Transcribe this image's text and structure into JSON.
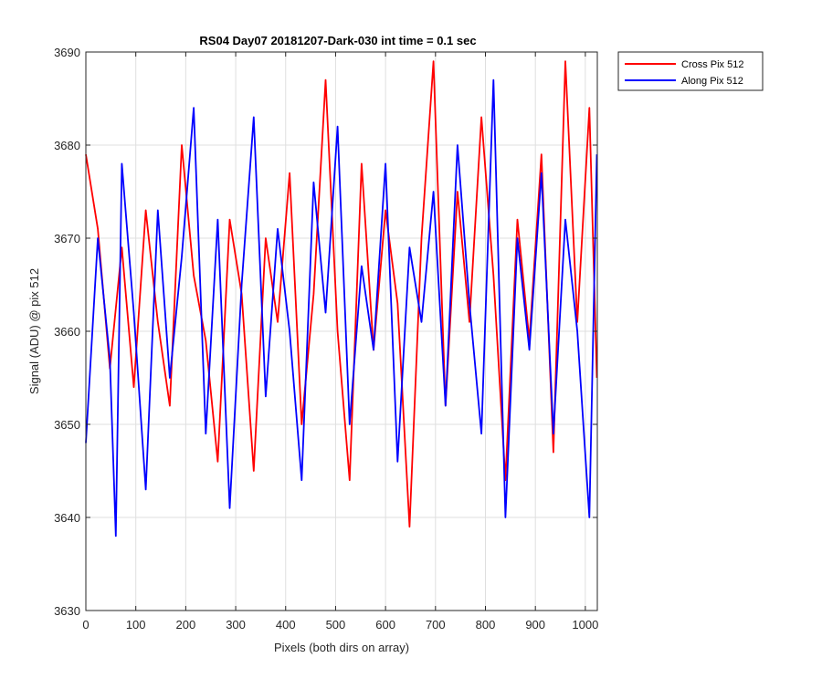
{
  "chart_data": {
    "type": "line",
    "title": "RS04 Day07 20181207-Dark-030 int time = 0.1 sec",
    "xlabel": "Pixels (both dirs on array)",
    "ylabel": "Signal (ADU) @ pix 512",
    "xlim": [
      0,
      1024
    ],
    "ylim": [
      3630,
      3690
    ],
    "xticks": [
      0,
      100,
      200,
      300,
      400,
      500,
      600,
      700,
      800,
      900,
      1000
    ],
    "yticks": [
      3630,
      3640,
      3650,
      3660,
      3670,
      3680,
      3690
    ],
    "xtick_labels": [
      "0",
      "100",
      "200",
      "300",
      "400",
      "500",
      "600",
      "700",
      "800",
      "900",
      "1000"
    ],
    "ytick_labels": [
      "3630",
      "3640",
      "3650",
      "3660",
      "3670",
      "3680",
      "3690"
    ],
    "grid": true,
    "legend_position": "outside-top-right",
    "series": [
      {
        "name": "Cross Pix 512",
        "color": "#ff0000",
        "x": [
          0,
          24,
          48,
          72,
          96,
          120,
          144,
          168,
          192,
          216,
          240,
          264,
          288,
          312,
          336,
          360,
          384,
          408,
          432,
          456,
          480,
          504,
          528,
          552,
          576,
          600,
          624,
          648,
          672,
          696,
          720,
          744,
          768,
          792,
          816,
          840,
          864,
          888,
          912,
          936,
          960,
          984,
          1008,
          1023
        ],
        "y": [
          3679,
          3671,
          3656,
          3669,
          3654,
          3673,
          3661,
          3652,
          3680,
          3666,
          3659,
          3646,
          3672,
          3664,
          3645,
          3670,
          3661,
          3677,
          3650,
          3664,
          3687,
          3660,
          3644,
          3678,
          3658,
          3673,
          3663,
          3639,
          3670,
          3689,
          3652,
          3675,
          3661,
          3683,
          3666,
          3644,
          3672,
          3659,
          3679,
          3647,
          3689,
          3661,
          3684,
          3655
        ]
      },
      {
        "name": "Along Pix 512",
        "color": "#0000ff",
        "x": [
          0,
          24,
          48,
          60,
          72,
          96,
          120,
          144,
          168,
          192,
          216,
          240,
          264,
          288,
          312,
          336,
          360,
          384,
          408,
          432,
          456,
          480,
          504,
          528,
          552,
          576,
          600,
          624,
          648,
          672,
          696,
          720,
          744,
          768,
          792,
          816,
          840,
          864,
          888,
          912,
          936,
          960,
          984,
          1008,
          1023
        ],
        "y": [
          3648,
          3670,
          3657,
          3638,
          3678,
          3662,
          3643,
          3673,
          3655,
          3668,
          3684,
          3649,
          3672,
          3641,
          3665,
          3683,
          3653,
          3671,
          3660,
          3644,
          3676,
          3662,
          3682,
          3650,
          3667,
          3658,
          3678,
          3646,
          3669,
          3661,
          3675,
          3652,
          3680,
          3663,
          3649,
          3687,
          3640,
          3670,
          3658,
          3677,
          3649,
          3672,
          3660,
          3640,
          3679
        ]
      }
    ]
  }
}
